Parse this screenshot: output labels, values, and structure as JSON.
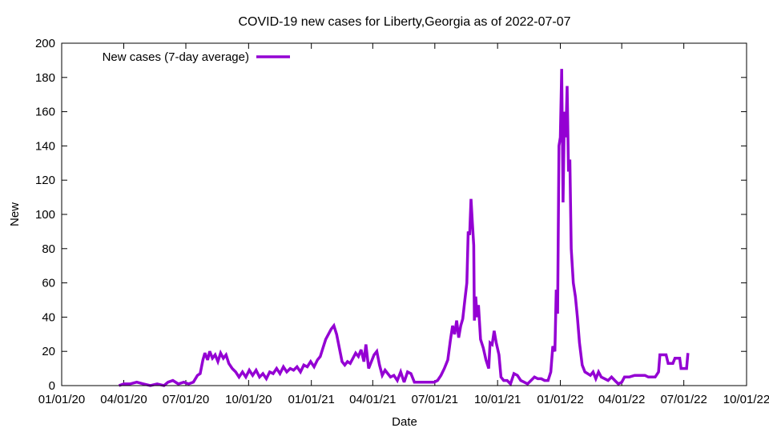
{
  "chart_data": {
    "type": "line",
    "title": "COVID-19 new cases for Liberty,Georgia as of 2022-07-07",
    "xlabel": "Date",
    "ylabel": "New",
    "xlim": [
      "2020-01-01",
      "2022-10-01"
    ],
    "ylim": [
      0,
      200
    ],
    "x_ticks": [
      "01/01/20",
      "04/01/20",
      "07/01/20",
      "10/01/20",
      "01/01/21",
      "04/01/21",
      "07/01/21",
      "10/01/21",
      "01/01/22",
      "04/01/22",
      "07/01/22",
      "10/01/22"
    ],
    "y_ticks": [
      0,
      20,
      40,
      60,
      80,
      100,
      120,
      140,
      160,
      180,
      200
    ],
    "grid": false,
    "legend_position": "top-left",
    "series": [
      {
        "name": "New cases (7-day average)",
        "color": "#9400d3",
        "points": [
          [
            "2020-03-25",
            0
          ],
          [
            "2020-04-01",
            1
          ],
          [
            "2020-04-10",
            1
          ],
          [
            "2020-04-20",
            2
          ],
          [
            "2020-04-30",
            1
          ],
          [
            "2020-05-10",
            0
          ],
          [
            "2020-05-20",
            1
          ],
          [
            "2020-05-30",
            0
          ],
          [
            "2020-06-05",
            2
          ],
          [
            "2020-06-12",
            3
          ],
          [
            "2020-06-20",
            1
          ],
          [
            "2020-06-28",
            2
          ],
          [
            "2020-07-05",
            1
          ],
          [
            "2020-07-12",
            2
          ],
          [
            "2020-07-18",
            6
          ],
          [
            "2020-07-22",
            7
          ],
          [
            "2020-07-26",
            15
          ],
          [
            "2020-07-29",
            19
          ],
          [
            "2020-08-02",
            15
          ],
          [
            "2020-08-05",
            20
          ],
          [
            "2020-08-09",
            16
          ],
          [
            "2020-08-13",
            18
          ],
          [
            "2020-08-17",
            14
          ],
          [
            "2020-08-21",
            19
          ],
          [
            "2020-08-25",
            16
          ],
          [
            "2020-08-29",
            18
          ],
          [
            "2020-09-02",
            13
          ],
          [
            "2020-09-07",
            10
          ],
          [
            "2020-09-12",
            8
          ],
          [
            "2020-09-17",
            5
          ],
          [
            "2020-09-22",
            8
          ],
          [
            "2020-09-27",
            5
          ],
          [
            "2020-10-02",
            9
          ],
          [
            "2020-10-07",
            6
          ],
          [
            "2020-10-12",
            9
          ],
          [
            "2020-10-17",
            5
          ],
          [
            "2020-10-22",
            7
          ],
          [
            "2020-10-27",
            4
          ],
          [
            "2020-11-01",
            8
          ],
          [
            "2020-11-06",
            7
          ],
          [
            "2020-11-11",
            10
          ],
          [
            "2020-11-16",
            7
          ],
          [
            "2020-11-21",
            11
          ],
          [
            "2020-11-26",
            8
          ],
          [
            "2020-12-01",
            10
          ],
          [
            "2020-12-06",
            9
          ],
          [
            "2020-12-11",
            11
          ],
          [
            "2020-12-16",
            8
          ],
          [
            "2020-12-21",
            12
          ],
          [
            "2020-12-26",
            11
          ],
          [
            "2020-12-31",
            14
          ],
          [
            "2021-01-05",
            11
          ],
          [
            "2021-01-10",
            15
          ],
          [
            "2021-01-14",
            17
          ],
          [
            "2021-01-18",
            22
          ],
          [
            "2021-01-22",
            27
          ],
          [
            "2021-01-26",
            30
          ],
          [
            "2021-01-30",
            33
          ],
          [
            "2021-02-03",
            35
          ],
          [
            "2021-02-07",
            30
          ],
          [
            "2021-02-11",
            22
          ],
          [
            "2021-02-15",
            14
          ],
          [
            "2021-02-19",
            12
          ],
          [
            "2021-02-23",
            14
          ],
          [
            "2021-02-27",
            13
          ],
          [
            "2021-03-03",
            16
          ],
          [
            "2021-03-07",
            19
          ],
          [
            "2021-03-11",
            17
          ],
          [
            "2021-03-15",
            21
          ],
          [
            "2021-03-19",
            14
          ],
          [
            "2021-03-22",
            24
          ],
          [
            "2021-03-26",
            10
          ],
          [
            "2021-03-30",
            14
          ],
          [
            "2021-04-03",
            18
          ],
          [
            "2021-04-07",
            20
          ],
          [
            "2021-04-11",
            12
          ],
          [
            "2021-04-15",
            6
          ],
          [
            "2021-04-19",
            9
          ],
          [
            "2021-04-23",
            7
          ],
          [
            "2021-04-27",
            5
          ],
          [
            "2021-05-02",
            6
          ],
          [
            "2021-05-07",
            3
          ],
          [
            "2021-05-12",
            8
          ],
          [
            "2021-05-17",
            2
          ],
          [
            "2021-05-22",
            8
          ],
          [
            "2021-05-27",
            7
          ],
          [
            "2021-06-01",
            2
          ],
          [
            "2021-06-10",
            2
          ],
          [
            "2021-06-20",
            2
          ],
          [
            "2021-06-30",
            2
          ],
          [
            "2021-07-05",
            3
          ],
          [
            "2021-07-10",
            6
          ],
          [
            "2021-07-15",
            10
          ],
          [
            "2021-07-20",
            15
          ],
          [
            "2021-07-24",
            27
          ],
          [
            "2021-07-27",
            35
          ],
          [
            "2021-07-30",
            30
          ],
          [
            "2021-08-02",
            38
          ],
          [
            "2021-08-05",
            28
          ],
          [
            "2021-08-08",
            35
          ],
          [
            "2021-08-11",
            39
          ],
          [
            "2021-08-14",
            50
          ],
          [
            "2021-08-17",
            60
          ],
          [
            "2021-08-19",
            90
          ],
          [
            "2021-08-21",
            88
          ],
          [
            "2021-08-23",
            109
          ],
          [
            "2021-08-25",
            95
          ],
          [
            "2021-08-27",
            82
          ],
          [
            "2021-08-28",
            38
          ],
          [
            "2021-08-30",
            52
          ],
          [
            "2021-09-01",
            40
          ],
          [
            "2021-09-03",
            47
          ],
          [
            "2021-09-06",
            27
          ],
          [
            "2021-09-10",
            22
          ],
          [
            "2021-09-14",
            15
          ],
          [
            "2021-09-18",
            10
          ],
          [
            "2021-09-20",
            25
          ],
          [
            "2021-09-23",
            24
          ],
          [
            "2021-09-26",
            32
          ],
          [
            "2021-09-29",
            25
          ],
          [
            "2021-10-03",
            18
          ],
          [
            "2021-10-06",
            5
          ],
          [
            "2021-10-10",
            3
          ],
          [
            "2021-10-15",
            3
          ],
          [
            "2021-10-20",
            1
          ],
          [
            "2021-10-25",
            7
          ],
          [
            "2021-10-30",
            6
          ],
          [
            "2021-11-04",
            3
          ],
          [
            "2021-11-09",
            2
          ],
          [
            "2021-11-14",
            1
          ],
          [
            "2021-11-19",
            3
          ],
          [
            "2021-11-24",
            5
          ],
          [
            "2021-11-29",
            4
          ],
          [
            "2021-12-04",
            4
          ],
          [
            "2021-12-09",
            3
          ],
          [
            "2021-12-14",
            3
          ],
          [
            "2021-12-18",
            8
          ],
          [
            "2021-12-21",
            23
          ],
          [
            "2021-12-24",
            20
          ],
          [
            "2021-12-26",
            56
          ],
          [
            "2021-12-28",
            42
          ],
          [
            "2021-12-30",
            140
          ],
          [
            "2022-01-01",
            145
          ],
          [
            "2022-01-03",
            185
          ],
          [
            "2022-01-05",
            107
          ],
          [
            "2022-01-07",
            160
          ],
          [
            "2022-01-09",
            145
          ],
          [
            "2022-01-11",
            175
          ],
          [
            "2022-01-13",
            125
          ],
          [
            "2022-01-15",
            132
          ],
          [
            "2022-01-17",
            80
          ],
          [
            "2022-01-20",
            60
          ],
          [
            "2022-01-23",
            52
          ],
          [
            "2022-01-26",
            40
          ],
          [
            "2022-01-29",
            25
          ],
          [
            "2022-02-02",
            12
          ],
          [
            "2022-02-06",
            8
          ],
          [
            "2022-02-10",
            7
          ],
          [
            "2022-02-14",
            6
          ],
          [
            "2022-02-18",
            8
          ],
          [
            "2022-02-22",
            4
          ],
          [
            "2022-02-26",
            8
          ],
          [
            "2022-03-02",
            5
          ],
          [
            "2022-03-07",
            4
          ],
          [
            "2022-03-12",
            3
          ],
          [
            "2022-03-17",
            5
          ],
          [
            "2022-03-22",
            3
          ],
          [
            "2022-03-27",
            1
          ],
          [
            "2022-04-01",
            2
          ],
          [
            "2022-04-05",
            5
          ],
          [
            "2022-04-12",
            5
          ],
          [
            "2022-04-20",
            6
          ],
          [
            "2022-04-28",
            6
          ],
          [
            "2022-05-05",
            6
          ],
          [
            "2022-05-10",
            5
          ],
          [
            "2022-05-15",
            5
          ],
          [
            "2022-05-20",
            5
          ],
          [
            "2022-05-25",
            8
          ],
          [
            "2022-05-27",
            18
          ],
          [
            "2022-06-05",
            18
          ],
          [
            "2022-06-08",
            13
          ],
          [
            "2022-06-15",
            13
          ],
          [
            "2022-06-18",
            16
          ],
          [
            "2022-06-25",
            16
          ],
          [
            "2022-06-27",
            10
          ],
          [
            "2022-07-05",
            10
          ],
          [
            "2022-07-07",
            19
          ]
        ]
      }
    ]
  }
}
